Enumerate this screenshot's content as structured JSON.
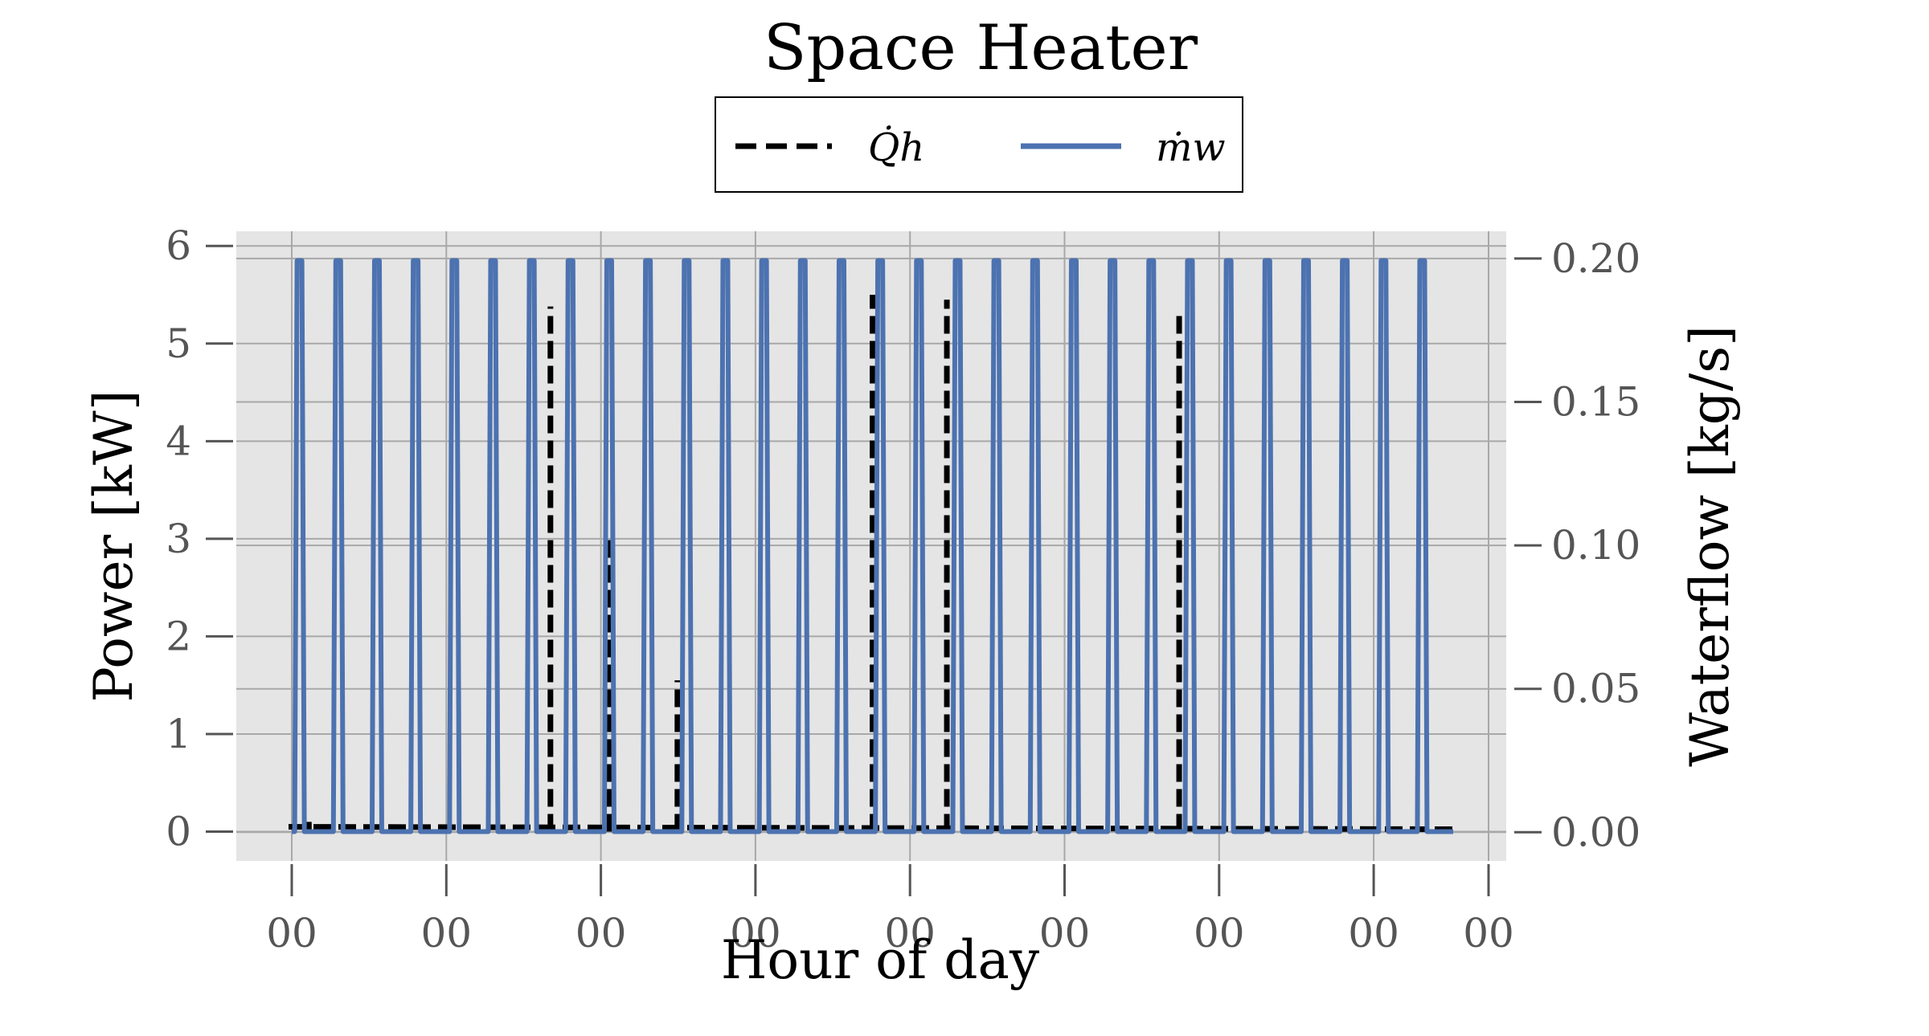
{
  "chart_data": {
    "type": "line",
    "title": "Space Heater",
    "xlabel": "Hour of day",
    "ylabel": "Power [kW]",
    "ylabel_right": "Waterflow [kg/s]",
    "x_tick_labels": [
      "00",
      "00",
      "00",
      "00",
      "00",
      "00",
      "00",
      "00",
      "00"
    ],
    "ylim": [
      -0.3,
      6.15
    ],
    "yticks": [
      "0",
      "1",
      "2",
      "3",
      "4",
      "5",
      "6"
    ],
    "ylim_right": [
      -0.01,
      0.2095
    ],
    "yticks_right": [
      "0.00",
      "0.05",
      "0.10",
      "0.15",
      "0.20"
    ],
    "grid": true,
    "legend_position": "top-center",
    "legend": [
      {
        "name": "Q̇h",
        "style": "dashed",
        "color": "#000000"
      },
      {
        "name": "ṁw",
        "style": "solid",
        "color": "#4c72b0"
      }
    ],
    "series": [
      {
        "name": "Q̇h",
        "axis": "left",
        "color": "#000000",
        "peak_positions": [
          0.1,
          1.66,
          2.04,
          2.48,
          3.74,
          4.22,
          5.72
        ],
        "peak_values": [
          0.1,
          5.38,
          3.05,
          1.55,
          5.5,
          5.45,
          5.3
        ]
      },
      {
        "name": "ṁw",
        "axis": "left",
        "color": "#4c72b0",
        "peak_positions": [
          0.05,
          0.3,
          0.55,
          0.8,
          1.05,
          1.3,
          1.55,
          1.8,
          2.05,
          2.3,
          2.55,
          2.8,
          3.05,
          3.3,
          3.55,
          3.8,
          4.05,
          4.3,
          4.55,
          4.8,
          5.05,
          5.3,
          5.55,
          5.8,
          6.05,
          6.3,
          6.55,
          6.8,
          7.05,
          7.3
        ],
        "peak_values": [
          5.85,
          5.85,
          5.85,
          5.85,
          5.85,
          5.85,
          5.85,
          5.85,
          5.85,
          5.85,
          5.85,
          5.85,
          5.85,
          5.85,
          5.85,
          5.85,
          5.85,
          5.85,
          5.85,
          5.85,
          5.85,
          5.85,
          5.85,
          5.85,
          5.85,
          5.85,
          5.85,
          5.85,
          5.85,
          5.85
        ]
      }
    ]
  }
}
